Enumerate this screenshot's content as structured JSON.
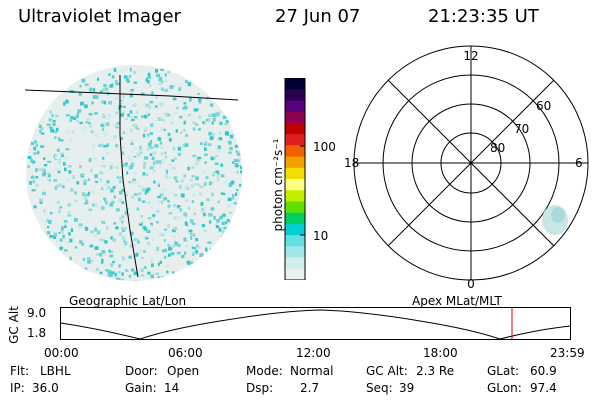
{
  "header": {
    "title": "Ultraviolet Imager",
    "date": "27 Jun 07",
    "time": "21:23:35 UT"
  },
  "colorbar": {
    "unit_label": "photon cm⁻²s⁻¹",
    "tick_100": "100",
    "tick_10": "10",
    "colors": [
      "#000033",
      "#2a0050",
      "#5a007a",
      "#8e0050",
      "#c00000",
      "#e02020",
      "#f06000",
      "#f0a000",
      "#f0e000",
      "#ffff80",
      "#c0f000",
      "#60e000",
      "#00d060",
      "#00d0d0",
      "#60e0e0",
      "#a0e8e8",
      "#d0eeee",
      "#e8f0f0"
    ]
  },
  "polar_plot": {
    "mlt_labels": {
      "top": "12",
      "left": "18",
      "right": "6",
      "bottom": "0"
    },
    "lat_labels": [
      "60",
      "70",
      "80"
    ]
  },
  "captions": {
    "left": "Geographic Lat/Lon",
    "right": "Apex MLat/MLT"
  },
  "altitude_strip": {
    "ylabel": "GC Alt",
    "ytick_top": "9.0",
    "ytick_bottom": "1.8",
    "time_ticks": [
      "00:00",
      "06:00",
      "12:00",
      "18:00",
      "23:59"
    ],
    "marker_color": "#dd0000"
  },
  "status": {
    "flt_label": "Flt:",
    "flt_value": "LBHL",
    "ip_label": "IP:",
    "ip_value": "36.0",
    "door_label": "Door:",
    "door_value": "Open",
    "gain_label": "Gain:",
    "gain_value": "14",
    "mode_label": "Mode:",
    "mode_value": "Normal",
    "dsp_label": "Dsp:",
    "dsp_value": "2.7",
    "gcalt_label": "GC Alt:",
    "gcalt_value": "2.3 Re",
    "seq_label": "Seq:",
    "seq_value": "39",
    "glat_label": "GLat:",
    "glat_value": "60.9",
    "glon_label": "GLon:",
    "glon_value": "97.4"
  }
}
